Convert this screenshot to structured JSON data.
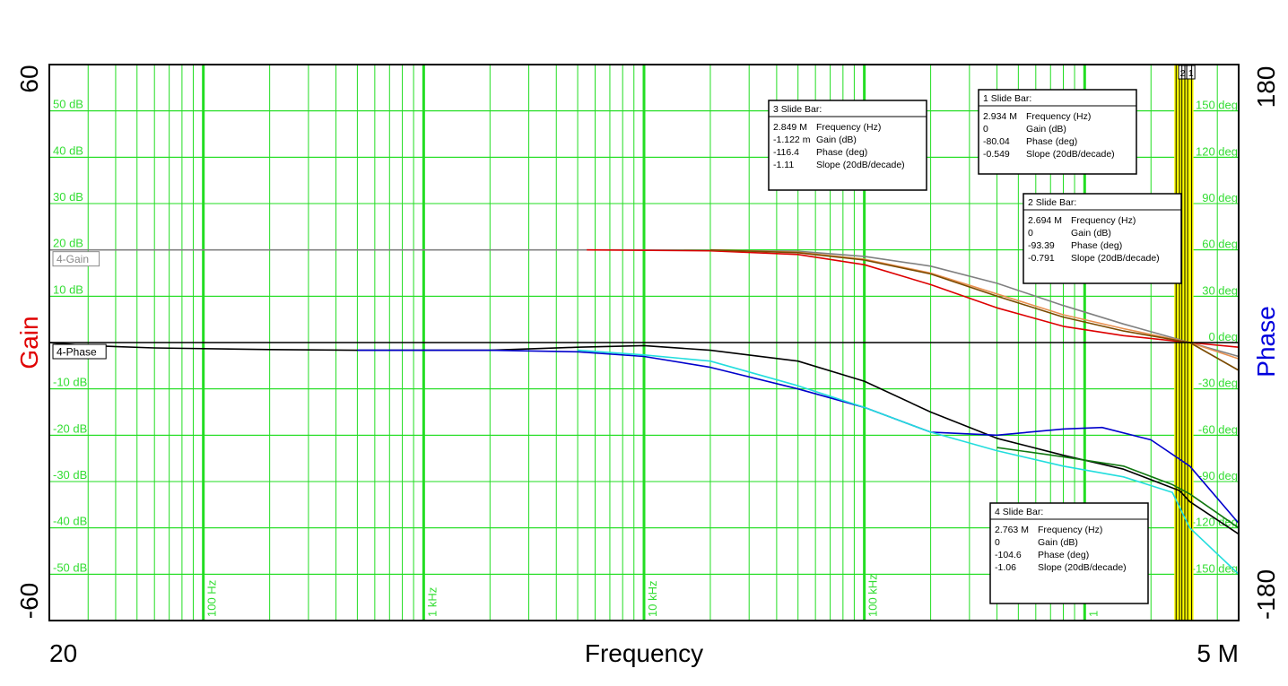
{
  "chart_data": {
    "type": "line",
    "xlabel": "Frequency",
    "x_scale": "log",
    "xlim": [
      20,
      5000000
    ],
    "x_range_labels": {
      "min": "20",
      "max": "5 M"
    },
    "y_left": {
      "label": "Gain",
      "label_color": "#e00000",
      "lim": [
        -60,
        60
      ],
      "max_label": "60",
      "min_label": "-60",
      "ticks": [
        {
          "value": 50,
          "label": "50 dB"
        },
        {
          "value": 40,
          "label": "40 dB"
        },
        {
          "value": 30,
          "label": "30 dB"
        },
        {
          "value": 20,
          "label": "20 dB"
        },
        {
          "value": 10,
          "label": "10 dB"
        },
        {
          "value": -10,
          "label": "-10 dB"
        },
        {
          "value": -20,
          "label": "-20 dB"
        },
        {
          "value": -30,
          "label": "-30 dB"
        },
        {
          "value": -40,
          "label": "-40 dB"
        },
        {
          "value": -50,
          "label": "-50 dB"
        }
      ]
    },
    "y_right": {
      "label": "Phase",
      "label_color": "#0000dd",
      "lim": [
        -180,
        180
      ],
      "max_label": "180",
      "min_label": "-180",
      "ticks": [
        {
          "value": 150,
          "label": "150 deg"
        },
        {
          "value": 120,
          "label": "120 deg"
        },
        {
          "value": 90,
          "label": "90 deg"
        },
        {
          "value": 60,
          "label": "60 deg"
        },
        {
          "value": 30,
          "label": "30 deg"
        },
        {
          "value": 0,
          "label": "0 deg"
        },
        {
          "value": -30,
          "label": "-30 deg"
        },
        {
          "value": -60,
          "label": "-60 deg"
        },
        {
          "value": -90,
          "label": "-90 deg"
        },
        {
          "value": -120,
          "label": "-120 deg"
        },
        {
          "value": -150,
          "label": "-150 deg"
        }
      ]
    },
    "x_decade_labels": [
      {
        "value": 100,
        "label": "100 Hz"
      },
      {
        "value": 1000,
        "label": "1 kHz"
      },
      {
        "value": 10000,
        "label": "10 kHz"
      },
      {
        "value": 100000,
        "label": "100 kHz"
      },
      {
        "value": 1000000,
        "label": "1"
      }
    ],
    "grid": true,
    "colors": {
      "grid": "#22dd22",
      "cursor": "#ffff00"
    },
    "trace_labels": [
      {
        "text": "4-Gain",
        "value": 20,
        "color": "#888888"
      },
      {
        "text": "4-Phase",
        "value": 0,
        "color": "#000000"
      }
    ],
    "series": [
      {
        "axis": "gain",
        "color": "#808080",
        "points": [
          [
            20,
            20
          ],
          [
            10000,
            20
          ],
          [
            50000,
            19.7
          ],
          [
            100000,
            18.6
          ],
          [
            200000,
            16.5
          ],
          [
            400000,
            12.8
          ],
          [
            800000,
            8
          ],
          [
            1500000,
            4
          ],
          [
            3000000,
            0
          ],
          [
            5000000,
            -3
          ]
        ]
      },
      {
        "axis": "gain",
        "color": "#dd0000",
        "points": [
          [
            5500,
            20
          ],
          [
            20000,
            19.8
          ],
          [
            50000,
            19
          ],
          [
            100000,
            16.8
          ],
          [
            200000,
            12.5
          ],
          [
            400000,
            7.5
          ],
          [
            800000,
            3.5
          ],
          [
            1500000,
            1.5
          ],
          [
            3000000,
            0
          ],
          [
            5000000,
            -1
          ]
        ]
      },
      {
        "axis": "gain",
        "color": "#e89050",
        "points": [
          [
            20000,
            20
          ],
          [
            50000,
            19.5
          ],
          [
            100000,
            18
          ],
          [
            200000,
            15
          ],
          [
            400000,
            10.5
          ],
          [
            800000,
            6
          ],
          [
            1500000,
            3
          ],
          [
            3000000,
            0
          ],
          [
            5000000,
            -3.5
          ]
        ]
      },
      {
        "axis": "gain",
        "color": "#7a4a00",
        "points": [
          [
            20000,
            20
          ],
          [
            50000,
            19.4
          ],
          [
            100000,
            17.8
          ],
          [
            200000,
            14.8
          ],
          [
            400000,
            10
          ],
          [
            800000,
            5.5
          ],
          [
            1500000,
            2.5
          ],
          [
            3000000,
            0
          ],
          [
            5000000,
            -6
          ]
        ]
      },
      {
        "axis": "gain",
        "color": "#000000",
        "points": [
          [
            20,
            0
          ],
          [
            5000000,
            0
          ]
        ]
      },
      {
        "axis": "phase",
        "color": "#000000",
        "points": [
          [
            20,
            0
          ],
          [
            30,
            -2
          ],
          [
            60,
            -3.5
          ],
          [
            200,
            -4.5
          ],
          [
            500,
            -5
          ],
          [
            2000,
            -5
          ],
          [
            5000,
            -3
          ],
          [
            10000,
            -2
          ],
          [
            20000,
            -5
          ],
          [
            50000,
            -12
          ],
          [
            100000,
            -25
          ],
          [
            200000,
            -45
          ],
          [
            400000,
            -62
          ],
          [
            800000,
            -73
          ],
          [
            1500000,
            -82
          ],
          [
            2700000,
            -96
          ],
          [
            3000000,
            -103
          ],
          [
            5000000,
            -124
          ]
        ]
      },
      {
        "axis": "phase",
        "color": "#0000cc",
        "points": [
          [
            500,
            -5
          ],
          [
            2000,
            -5
          ],
          [
            5000,
            -6
          ],
          [
            10000,
            -9
          ],
          [
            20000,
            -16
          ],
          [
            50000,
            -30
          ],
          [
            100000,
            -42
          ],
          [
            200000,
            -58
          ],
          [
            400000,
            -60
          ],
          [
            800000,
            -56
          ],
          [
            1200000,
            -55
          ],
          [
            2000000,
            -63
          ],
          [
            3000000,
            -80
          ],
          [
            5000000,
            -117
          ]
        ]
      },
      {
        "axis": "phase",
        "color": "#22dddd",
        "points": [
          [
            5000,
            -5
          ],
          [
            10000,
            -8
          ],
          [
            20000,
            -12
          ],
          [
            50000,
            -28
          ],
          [
            100000,
            -42
          ],
          [
            200000,
            -58
          ],
          [
            400000,
            -70
          ],
          [
            800000,
            -80
          ],
          [
            1500000,
            -87
          ],
          [
            2500000,
            -97
          ],
          [
            3000000,
            -120
          ],
          [
            5000000,
            -150
          ]
        ]
      },
      {
        "axis": "phase",
        "color": "#117711",
        "points": [
          [
            400000,
            -68
          ],
          [
            800000,
            -74
          ],
          [
            1500000,
            -80
          ],
          [
            2500000,
            -92
          ],
          [
            3000000,
            -98
          ],
          [
            5000000,
            -120
          ]
        ]
      }
    ],
    "cursors": [
      {
        "id": "2",
        "freq": 2694000
      },
      {
        "id": "1",
        "freq": 2934000
      },
      {
        "freq": 2763000
      },
      {
        "freq": 2849000
      },
      {
        "freq": 2600000
      },
      {
        "freq": 3060000
      }
    ],
    "slide_bars": [
      {
        "title": "3  Slide Bar:",
        "rows": [
          {
            "value": "2.849 M",
            "label": "Frequency (Hz)"
          },
          {
            "value": "-1.122 m",
            "label": "Gain (dB)"
          },
          {
            "value": "-116.4",
            "label": "Phase (deg)"
          },
          {
            "value": "-1.11",
            "label": "Slope (20dB/decade)"
          }
        ]
      },
      {
        "title": "1  Slide Bar:",
        "rows": [
          {
            "value": "2.934 M",
            "label": "Frequency (Hz)"
          },
          {
            "value": "0",
            "label": "Gain (dB)"
          },
          {
            "value": "-80.04",
            "label": "Phase (deg)"
          },
          {
            "value": "-0.549",
            "label": "Slope (20dB/decade)"
          }
        ]
      },
      {
        "title": "2  Slide Bar:",
        "rows": [
          {
            "value": "2.694 M",
            "label": "Frequency (Hz)"
          },
          {
            "value": "0",
            "label": "Gain (dB)"
          },
          {
            "value": "-93.39",
            "label": "Phase (deg)"
          },
          {
            "value": "-0.791",
            "label": "Slope (20dB/decade)"
          }
        ]
      },
      {
        "title": "4  Slide Bar:",
        "rows": [
          {
            "value": "2.763 M",
            "label": "Frequency (Hz)"
          },
          {
            "value": "0",
            "label": "Gain (dB)"
          },
          {
            "value": "-104.6",
            "label": "Phase (deg)"
          },
          {
            "value": "-1.06",
            "label": "Slope (20dB/decade)"
          }
        ]
      }
    ]
  }
}
